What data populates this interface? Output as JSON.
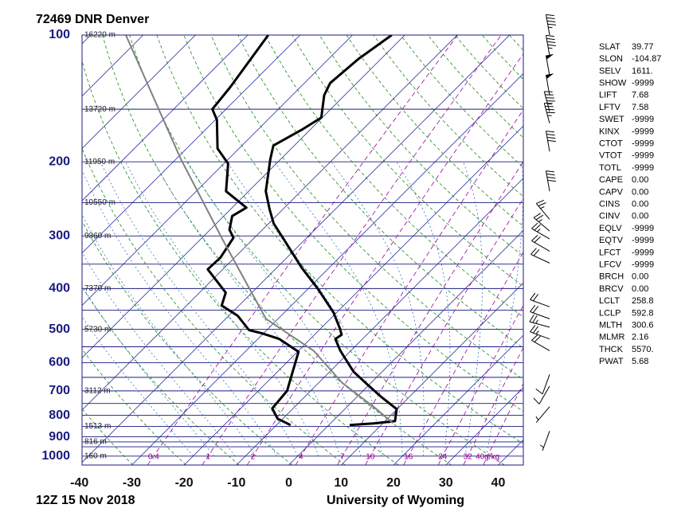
{
  "chart_data": {
    "type": "skewt",
    "title": "72469 DNR Denver",
    "subtitle": "12Z 15 Nov 2018",
    "source": "University of Wyoming",
    "xlim": [
      -39.5,
      44.8
    ],
    "xticks": [
      -40,
      -30,
      -20,
      -10,
      0,
      10,
      20,
      30,
      40
    ],
    "ylim": [
      1050,
      100
    ],
    "yticks": [
      100,
      200,
      300,
      400,
      500,
      600,
      700,
      800,
      900,
      1000
    ],
    "log_y": true,
    "isobars": [
      100,
      150,
      200,
      250,
      300,
      350,
      400,
      450,
      500,
      550,
      600,
      650,
      700,
      750,
      800,
      850,
      900,
      925,
      950,
      1000,
      1050
    ],
    "height_labels": [
      {
        "value": 100,
        "label": "16220 m"
      },
      {
        "value": 150,
        "label": "13720 m"
      },
      {
        "value": 200,
        "label": "11950 m"
      },
      {
        "value": 250,
        "label": "10550 m"
      },
      {
        "value": 300,
        "label": "9360 m"
      },
      {
        "value": 400,
        "label": "7370 m"
      },
      {
        "value": 500,
        "label": "5730 m"
      },
      {
        "value": 700,
        "label": "3112 m"
      },
      {
        "value": 850,
        "label": "1513 m"
      },
      {
        "value": 925,
        "label": "816 m"
      },
      {
        "value": 1000,
        "label": "160 m"
      }
    ],
    "mixing_ratios": [
      0.4,
      1,
      2,
      4,
      7,
      10,
      16,
      24,
      32,
      {
        "value": 40,
        "label": "40g/kg"
      }
    ],
    "series": [
      {
        "color": "#000000",
        "pressure": [
          844,
          836,
          826,
          773,
          724,
          675,
          630,
          562,
          527,
          515,
          498,
          456,
          433,
          400,
          356,
          305,
          280,
          259,
          235,
          197,
          183,
          168,
          157,
          139,
          130,
          114,
          100
        ],
        "values": [
          4.0,
          8.2,
          11.9,
          9.9,
          4.7,
          -0.5,
          -5.5,
          -12.0,
          -15.2,
          -14.8,
          -16.3,
          -20.6,
          -23.6,
          -28.2,
          -35.4,
          -44.2,
          -49.1,
          -52.6,
          -56.7,
          -62.0,
          -64.0,
          -61.6,
          -60.2,
          -63.9,
          -65.1,
          -64.3,
          -62.5
        ]
      },
      {
        "color": "#000000",
        "pressure": [
          844,
          815,
          770,
          700,
          565,
          527,
          511,
          502,
          464,
          439,
          409,
          360,
          338,
          303,
          290,
          269,
          257,
          235,
          202,
          186,
          159,
          150,
          133,
          100
        ],
        "values": [
          -7.3,
          -11.0,
          -14.0,
          -14.5,
          -19.8,
          -25.9,
          -30.3,
          -33.4,
          -38.3,
          -43.3,
          -45.0,
          -52.9,
          -52.7,
          -54.0,
          -56.3,
          -58.4,
          -57.3,
          -64.3,
          -69.2,
          -74.1,
          -79.7,
          -82.6,
          -83.4,
          -86.1
        ]
      },
      {
        "color": "#808080",
        "pressure": [
          835,
          763,
          669,
          562,
          472,
          305,
          197,
          100
        ],
        "values": [
          11.9,
          5.0,
          -5.6,
          -17.1,
          -32.3,
          -55.9,
          -79.1,
          -113.3
        ]
      }
    ],
    "winds": {
      "pressure": [
        100,
        112,
        125,
        139,
        152,
        162,
        189,
        235,
        274,
        292,
        305,
        326,
        348,
        442,
        472,
        494,
        527,
        562,
        640,
        682,
        763,
        872
      ],
      "direction": [
        350,
        350,
        350,
        350,
        345,
        345,
        350,
        350,
        320,
        310,
        300,
        300,
        295,
        290,
        290,
        285,
        290,
        300,
        200,
        210,
        220,
        200
      ],
      "speed": [
        45,
        45,
        50,
        50,
        45,
        45,
        40,
        40,
        25,
        25,
        25,
        20,
        20,
        20,
        20,
        25,
        25,
        20,
        10,
        10,
        5,
        5
      ]
    },
    "indices": [
      {
        "name": "SLAT",
        "value": "39.77"
      },
      {
        "name": "SLON",
        "value": "-104.87"
      },
      {
        "name": "SELV",
        "value": "1611."
      },
      {
        "name": "SHOW",
        "value": "-9999"
      },
      {
        "name": "LIFT",
        "value": "7.68"
      },
      {
        "name": "LFTV",
        "value": "7.58"
      },
      {
        "name": "SWET",
        "value": "-9999"
      },
      {
        "name": "KINX",
        "value": "-9999"
      },
      {
        "name": "CTOT",
        "value": "-9999"
      },
      {
        "name": "VTOT",
        "value": "-9999"
      },
      {
        "name": "TOTL",
        "value": "-9999"
      },
      {
        "name": "CAPE",
        "value": "0.00"
      },
      {
        "name": "CAPV",
        "value": "0.00"
      },
      {
        "name": "CINS",
        "value": "0.00"
      },
      {
        "name": "CINV",
        "value": "0.00"
      },
      {
        "name": "EQLV",
        "value": "-9999"
      },
      {
        "name": "EQTV",
        "value": "-9999"
      },
      {
        "name": "LFCT",
        "value": "-9999"
      },
      {
        "name": "LFCV",
        "value": "-9999"
      },
      {
        "name": "BRCH",
        "value": "0.00"
      },
      {
        "name": "BRCV",
        "value": "0.00"
      },
      {
        "name": "LCLT",
        "value": "258.8"
      },
      {
        "name": "LCLP",
        "value": "592.8"
      },
      {
        "name": "MLTH",
        "value": "300.6"
      },
      {
        "name": "MLMR",
        "value": "2.16"
      },
      {
        "name": "THCK",
        "value": "5570."
      },
      {
        "name": "PWAT",
        "value": "5.68"
      }
    ]
  }
}
